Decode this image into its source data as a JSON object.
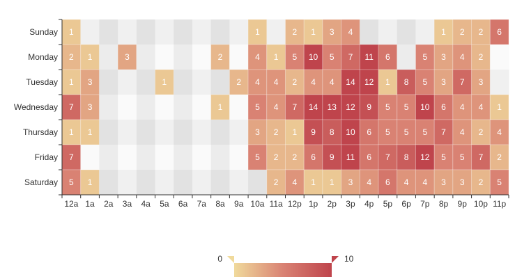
{
  "chart_data": {
    "type": "heatmap",
    "x_categories": [
      "12a",
      "1a",
      "2a",
      "3a",
      "4a",
      "5a",
      "6a",
      "7a",
      "8a",
      "9a",
      "10a",
      "11a",
      "12p",
      "1p",
      "2p",
      "3p",
      "4p",
      "5p",
      "6p",
      "7p",
      "8p",
      "9p",
      "10p",
      "11p"
    ],
    "y_categories": [
      "Sunday",
      "Monday",
      "Tuesday",
      "Wednesday",
      "Thursday",
      "Friday",
      "Saturday"
    ],
    "values": [
      [
        1,
        null,
        null,
        null,
        null,
        null,
        null,
        null,
        null,
        null,
        1,
        null,
        2,
        1,
        3,
        4,
        null,
        null,
        null,
        null,
        1,
        2,
        2,
        6
      ],
      [
        2,
        1,
        null,
        3,
        null,
        null,
        null,
        null,
        2,
        null,
        4,
        1,
        5,
        10,
        5,
        7,
        11,
        6,
        null,
        5,
        3,
        4,
        2,
        null
      ],
      [
        1,
        3,
        null,
        null,
        null,
        1,
        null,
        null,
        null,
        2,
        4,
        4,
        2,
        4,
        4,
        14,
        12,
        1,
        8,
        5,
        3,
        7,
        3,
        null
      ],
      [
        7,
        3,
        null,
        null,
        null,
        null,
        null,
        null,
        1,
        null,
        5,
        4,
        7,
        14,
        13,
        12,
        9,
        5,
        5,
        10,
        6,
        4,
        4,
        1
      ],
      [
        1,
        1,
        null,
        null,
        null,
        null,
        null,
        null,
        null,
        null,
        3,
        2,
        1,
        9,
        8,
        10,
        6,
        5,
        5,
        5,
        7,
        4,
        2,
        4
      ],
      [
        7,
        null,
        null,
        null,
        null,
        null,
        null,
        null,
        null,
        null,
        5,
        2,
        2,
        6,
        9,
        11,
        6,
        7,
        8,
        12,
        5,
        5,
        7,
        2
      ],
      [
        5,
        1,
        null,
        null,
        null,
        null,
        null,
        null,
        null,
        null,
        null,
        2,
        4,
        1,
        1,
        3,
        4,
        6,
        4,
        4,
        3,
        3,
        2,
        5
      ]
    ],
    "visual_map": {
      "min": 0,
      "max": 10,
      "min_label": "0",
      "max_label": "10",
      "colors": [
        "#f0da9c",
        "#d98273",
        "#bf444c"
      ],
      "placement": "bottom-center"
    },
    "split_area_colors": [
      "#f0f0f0",
      "#e2e2e2",
      "#fafafa",
      "#ececec"
    ],
    "data_labels": true
  }
}
